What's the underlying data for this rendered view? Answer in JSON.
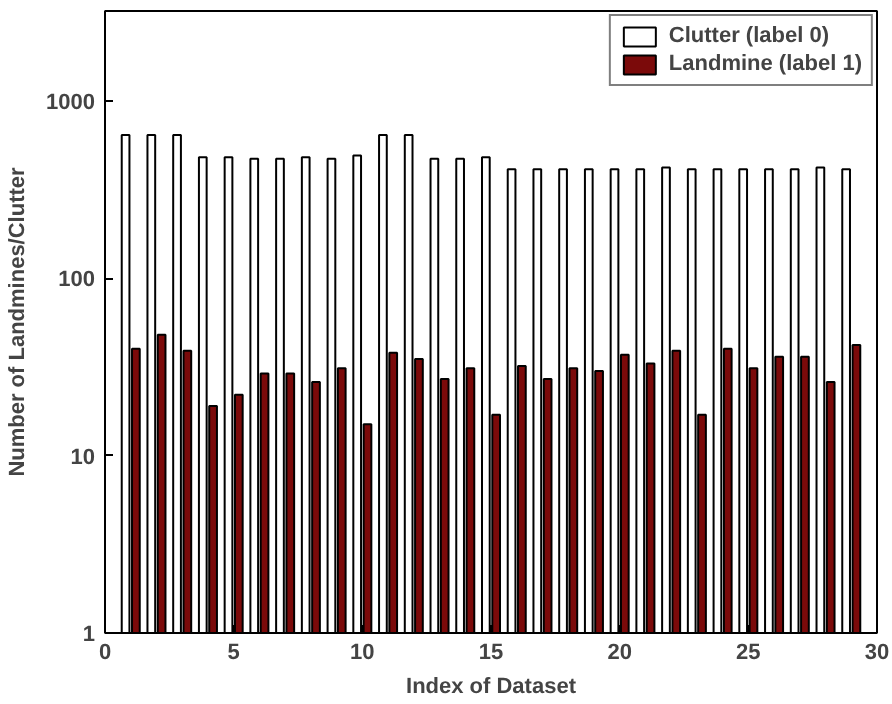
{
  "chart_data": {
    "type": "bar",
    "xlabel": "Index of Dataset",
    "ylabel": "Number of Landmines/Clutter",
    "x": [
      1,
      2,
      3,
      4,
      5,
      6,
      7,
      8,
      9,
      10,
      11,
      12,
      13,
      14,
      15,
      16,
      17,
      18,
      19,
      20,
      21,
      22,
      23,
      24,
      25,
      26,
      27,
      28,
      29
    ],
    "series": [
      {
        "name": "Clutter (label 0)",
        "color": "#ffffff",
        "values": [
          640,
          640,
          640,
          480,
          480,
          470,
          470,
          480,
          470,
          490,
          640,
          640,
          470,
          470,
          480,
          410,
          410,
          410,
          410,
          410,
          410,
          420,
          410,
          410,
          410,
          410,
          410,
          420,
          410
        ]
      },
      {
        "name": "Landmine (label 1)",
        "color": "#7b0a0a",
        "values": [
          40,
          48,
          39,
          19,
          22,
          29,
          29,
          26,
          31,
          15,
          38,
          35,
          27,
          31,
          17,
          32,
          27,
          31,
          30,
          37,
          33,
          39,
          17,
          40,
          31,
          36,
          36,
          26,
          42
        ]
      }
    ],
    "log": "y",
    "xlim": [
      0,
      30
    ],
    "xticks": [
      0,
      5,
      10,
      15,
      20,
      25,
      30
    ],
    "ylim": [
      1,
      3200
    ],
    "yticks": [
      1,
      10,
      100,
      1000
    ],
    "grid": false,
    "legend": "top right"
  }
}
